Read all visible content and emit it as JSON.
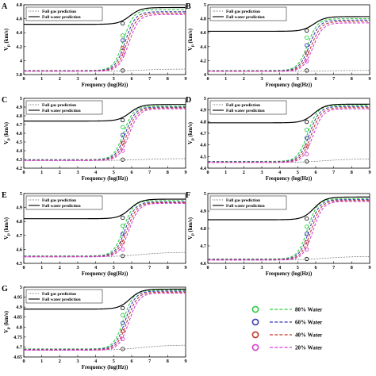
{
  "chart_data": [
    {
      "panel": "A",
      "type": "line",
      "xlabel": "Frequency (log(Hz))",
      "ylabel": "V_p (km/s)",
      "xlim": [
        0,
        9
      ],
      "ylim": [
        3.8,
        4.8
      ],
      "yticks": [
        "3.8",
        "4",
        "4.2",
        "4.4",
        "4.6",
        "4.8"
      ],
      "gas_high": 3.88,
      "water_low": 4.52,
      "water_high": 4.76,
      "series_low": [
        3.858,
        3.855,
        3.852,
        3.848
      ],
      "series_high": [
        4.73,
        4.7,
        4.68,
        4.66
      ],
      "points_y": [
        4.36,
        4.29,
        4.18,
        4.09
      ]
    },
    {
      "panel": "B",
      "type": "line",
      "xlabel": "Frequency (log(Hz))",
      "ylabel": "V_p (km/s)",
      "xlim": [
        0,
        9
      ],
      "ylim": [
        4,
        5
      ],
      "yticks": [
        "4",
        "4.2",
        "4.4",
        "4.6",
        "4.8",
        "5"
      ],
      "gas_high": 4.06,
      "water_low": 4.62,
      "water_high": 4.83,
      "series_low": [
        4.058,
        4.054,
        4.05,
        4.046
      ],
      "series_high": [
        4.8,
        4.78,
        4.76,
        4.74
      ],
      "points_y": [
        4.53,
        4.42,
        4.31,
        4.19
      ]
    },
    {
      "panel": "C",
      "type": "line",
      "xlabel": "Frequency (log(Hz))",
      "ylabel": "V_p (km/s)",
      "xlim": [
        0,
        9
      ],
      "ylim": [
        4.2,
        5
      ],
      "yticks": [
        "4.2",
        "4.3",
        "4.4",
        "4.5",
        "4.6",
        "4.7",
        "4.8",
        "4.9",
        "5"
      ],
      "gas_high": 4.31,
      "water_low": 4.74,
      "water_high": 4.93,
      "series_low": [
        4.298,
        4.295,
        4.292,
        4.289
      ],
      "series_high": [
        4.91,
        4.9,
        4.89,
        4.88
      ],
      "points_y": [
        4.67,
        4.58,
        4.49,
        4.4
      ]
    },
    {
      "panel": "D",
      "type": "line",
      "xlabel": "Frequency (log(Hz))",
      "ylabel": "V_p (km/s)",
      "xlim": [
        0,
        9
      ],
      "ylim": [
        4.4,
        5
      ],
      "yticks": [
        "4.4",
        "4.5",
        "4.6",
        "4.7",
        "4.8",
        "4.9",
        "5"
      ],
      "gas_high": 4.48,
      "water_low": 4.79,
      "water_high": 4.95,
      "series_low": [
        4.458,
        4.455,
        4.452,
        4.449
      ],
      "series_high": [
        4.94,
        4.93,
        4.92,
        4.91
      ],
      "points_y": [
        4.73,
        4.66,
        4.59,
        4.52
      ]
    },
    {
      "panel": "E",
      "type": "line",
      "xlabel": "Frequency (log(Hz))",
      "ylabel": "V_p (km/s)",
      "xlim": [
        0,
        9
      ],
      "ylim": [
        4.5,
        5
      ],
      "yticks": [
        "4.5",
        "4.6",
        "4.7",
        "4.8",
        "4.9",
        "5"
      ],
      "gas_high": 4.58,
      "water_low": 4.82,
      "water_high": 4.96,
      "series_low": [
        4.553,
        4.551,
        4.549,
        4.547
      ],
      "series_high": [
        4.95,
        4.94,
        4.935,
        4.93
      ],
      "points_y": [
        4.77,
        4.71,
        4.65,
        4.6
      ]
    },
    {
      "panel": "F",
      "type": "line",
      "xlabel": "Frequency (log(Hz))",
      "ylabel": "V_p (km/s)",
      "xlim": [
        0,
        9
      ],
      "ylim": [
        4.6,
        5
      ],
      "yticks": [
        "4.6",
        "4.7",
        "4.8",
        "4.9",
        "5"
      ],
      "gas_high": 4.64,
      "water_low": 4.85,
      "water_high": 4.98,
      "series_low": [
        4.625,
        4.623,
        4.621,
        4.619
      ],
      "series_high": [
        4.97,
        4.965,
        4.96,
        4.955
      ],
      "points_y": [
        4.81,
        4.77,
        4.72,
        4.68
      ]
    },
    {
      "panel": "G",
      "type": "line",
      "xlabel": "Frequency (log(Hz))",
      "ylabel": "V_p (km/s)",
      "xlim": [
        0,
        9
      ],
      "ylim": [
        4.65,
        5
      ],
      "yticks": [
        "4.65",
        "4.7",
        "4.75",
        "4.8",
        "4.85",
        "4.9",
        "4.95",
        "5"
      ],
      "gas_high": 4.71,
      "water_low": 4.89,
      "water_high": 4.99,
      "series_low": [
        4.69,
        4.688,
        4.686,
        4.684
      ],
      "series_high": [
        4.985,
        4.98,
        4.975,
        4.97
      ],
      "points_y": [
        4.86,
        4.82,
        4.78,
        4.74
      ]
    }
  ],
  "xticks": [
    "0",
    "1",
    "2",
    "3",
    "4",
    "5",
    "6",
    "7",
    "8",
    "9"
  ],
  "xlabel_text": "Frequency (log(Hz))",
  "ylabel_main": "V",
  "ylabel_sub": "p",
  "ylabel_unit": "(km/s)",
  "panel_legend": {
    "gas": "Full gas prediction",
    "water": "Full water prediction"
  },
  "series_legend": [
    {
      "label": "80% Water",
      "color": "#2ecc40"
    },
    {
      "label": "60% Water",
      "color": "#3b3bb0"
    },
    {
      "label": "40% Water",
      "color": "#c0392b"
    },
    {
      "label": "20% Water",
      "color": "#d63fd6"
    }
  ],
  "colors": {
    "water_line": "#000000",
    "gas_line": "#555555",
    "axis": "#000000"
  }
}
